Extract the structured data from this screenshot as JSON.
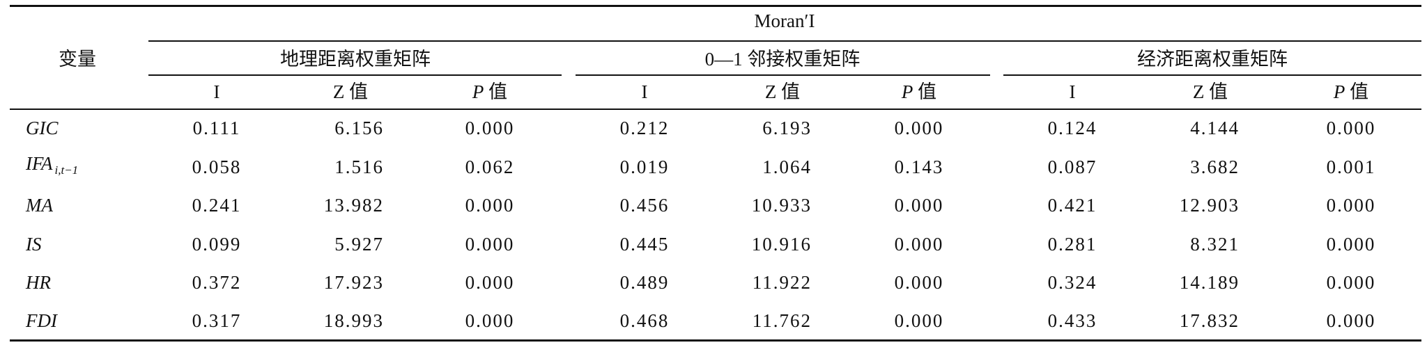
{
  "table": {
    "row_header": "变量",
    "group_title": "Moran′I",
    "matrices": [
      {
        "name": "地理距离权重矩阵",
        "columns": [
          "I",
          "Z 值",
          "P 值"
        ]
      },
      {
        "name": "0—1 邻接权重矩阵",
        "columns": [
          "I",
          "Z 值",
          "P 值"
        ]
      },
      {
        "name": "经济距离权重矩阵",
        "columns": [
          "I",
          "Z 值",
          "P 值"
        ]
      }
    ],
    "rows": [
      {
        "variable": "GIC",
        "values": [
          "0.111",
          "6.156",
          "0.000",
          "0.212",
          "6.193",
          "0.000",
          "0.124",
          "4.144",
          "0.000"
        ]
      },
      {
        "variable": "IFA",
        "subscript": "i,t−1",
        "values": [
          "0.058",
          "1.516",
          "0.062",
          "0.019",
          "1.064",
          "0.143",
          "0.087",
          "3.682",
          "0.001"
        ]
      },
      {
        "variable": "MA",
        "values": [
          "0.241",
          "13.982",
          "0.000",
          "0.456",
          "10.933",
          "0.000",
          "0.421",
          "12.903",
          "0.000"
        ]
      },
      {
        "variable": "IS",
        "values": [
          "0.099",
          "5.927",
          "0.000",
          "0.445",
          "10.916",
          "0.000",
          "0.281",
          "8.321",
          "0.000"
        ]
      },
      {
        "variable": "HR",
        "values": [
          "0.372",
          "17.923",
          "0.000",
          "0.489",
          "11.922",
          "0.000",
          "0.324",
          "14.189",
          "0.000"
        ]
      },
      {
        "variable": "FDI",
        "values": [
          "0.317",
          "18.993",
          "0.000",
          "0.468",
          "11.762",
          "0.000",
          "0.433",
          "17.832",
          "0.000"
        ]
      }
    ]
  }
}
